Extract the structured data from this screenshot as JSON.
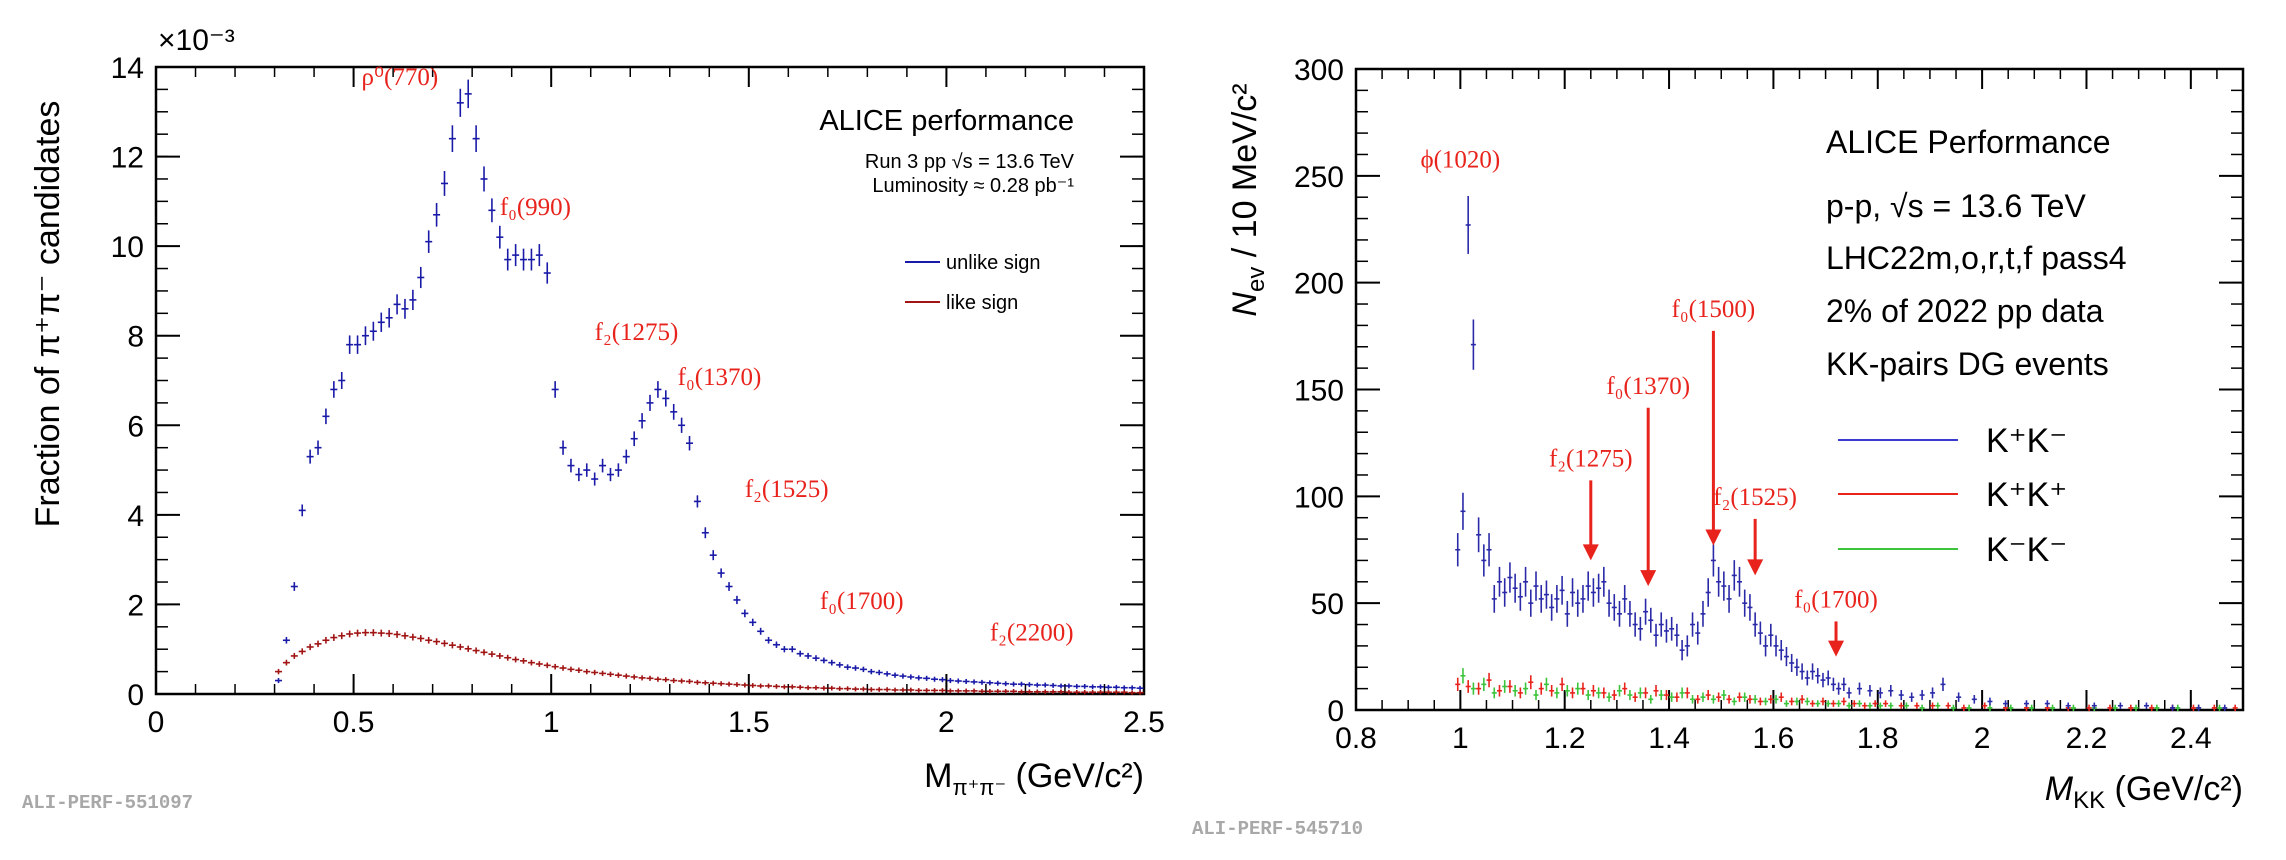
{
  "chart_data": [
    {
      "type": "scatter",
      "title": "",
      "xlabel": "M",
      "xlabel_sub": "π⁺π⁻",
      "xlabel_unit": " (GeV/c²)",
      "ylabel": "Fraction of π⁺π⁻ candidates",
      "exponent_label": "×10⁻³",
      "xlim": [
        0,
        2.5
      ],
      "ylim": [
        0,
        14
      ],
      "x_ticks": [
        "0",
        "0.5",
        "1",
        "1.5",
        "2",
        "2.5"
      ],
      "y_ticks": [
        "0",
        "2",
        "4",
        "6",
        "8",
        "10",
        "12",
        "14"
      ],
      "performance_label": "ALICE performance",
      "info_line1": "Run 3 pp √s = 13.6 TeV",
      "info_line2": "Luminosity ≈ 0.28 pb⁻¹",
      "legend": [
        {
          "label": "unlike sign",
          "color": "#1a1aa8"
        },
        {
          "label": "like sign",
          "color": "#a01414"
        }
      ],
      "annotations": [
        {
          "text": "ρ⁰(770)",
          "x": 0.52,
          "y": 13.6
        },
        {
          "text": "f₀(990)",
          "x": 0.87,
          "y": 10.7
        },
        {
          "text": "f₂(1275)",
          "x": 1.11,
          "y": 7.9
        },
        {
          "text": "f₀(1370)",
          "x": 1.32,
          "y": 6.9
        },
        {
          "text": "f₂(1525)",
          "x": 1.49,
          "y": 4.4
        },
        {
          "text": "f₀(1700)",
          "x": 1.68,
          "y": 1.9
        },
        {
          "text": "f₂(2200)",
          "x": 2.11,
          "y": 1.2
        }
      ],
      "series": [
        {
          "name": "unlike sign",
          "color": "#1a1aa8",
          "x": [
            0.31,
            0.33,
            0.35,
            0.37,
            0.39,
            0.41,
            0.43,
            0.45,
            0.47,
            0.49,
            0.51,
            0.53,
            0.55,
            0.57,
            0.59,
            0.61,
            0.63,
            0.65,
            0.67,
            0.69,
            0.71,
            0.73,
            0.75,
            0.77,
            0.79,
            0.81,
            0.83,
            0.85,
            0.87,
            0.89,
            0.91,
            0.93,
            0.95,
            0.97,
            0.99,
            1.01,
            1.03,
            1.05,
            1.07,
            1.09,
            1.11,
            1.13,
            1.15,
            1.17,
            1.19,
            1.21,
            1.23,
            1.25,
            1.27,
            1.29,
            1.31,
            1.33,
            1.35,
            1.37,
            1.39,
            1.41,
            1.43,
            1.45,
            1.47,
            1.49,
            1.51,
            1.53,
            1.55,
            1.57,
            1.59,
            1.61,
            1.63,
            1.65,
            1.67,
            1.69,
            1.71,
            1.73,
            1.75,
            1.77,
            1.79,
            1.81,
            1.83,
            1.85,
            1.87,
            1.89,
            1.91,
            1.93,
            1.95,
            1.97,
            1.99,
            2.01,
            2.03,
            2.05,
            2.07,
            2.09,
            2.11,
            2.13,
            2.15,
            2.17,
            2.19,
            2.21,
            2.23,
            2.25,
            2.27,
            2.29,
            2.31,
            2.33,
            2.35,
            2.37,
            2.39,
            2.41,
            2.43,
            2.45,
            2.47,
            2.49
          ],
          "y": [
            0.3,
            1.2,
            2.4,
            4.1,
            5.3,
            5.5,
            6.2,
            6.8,
            7.0,
            7.8,
            7.8,
            8.0,
            8.1,
            8.3,
            8.4,
            8.7,
            8.6,
            8.8,
            9.3,
            10.1,
            10.7,
            11.4,
            12.4,
            13.2,
            13.4,
            12.4,
            11.5,
            10.8,
            10.2,
            9.7,
            9.8,
            9.7,
            9.7,
            9.8,
            9.4,
            6.8,
            5.5,
            5.1,
            4.9,
            5.0,
            4.8,
            5.1,
            4.9,
            5.0,
            5.3,
            5.7,
            6.1,
            6.5,
            6.8,
            6.6,
            6.3,
            6.0,
            5.6,
            4.3,
            3.6,
            3.1,
            2.7,
            2.4,
            2.1,
            1.8,
            1.6,
            1.4,
            1.2,
            1.1,
            1.0,
            1.0,
            0.9,
            0.85,
            0.8,
            0.75,
            0.7,
            0.65,
            0.6,
            0.58,
            0.55,
            0.5,
            0.48,
            0.45,
            0.42,
            0.4,
            0.38,
            0.36,
            0.35,
            0.33,
            0.32,
            0.3,
            0.29,
            0.28,
            0.27,
            0.26,
            0.25,
            0.24,
            0.23,
            0.22,
            0.22,
            0.21,
            0.2,
            0.2,
            0.19,
            0.18,
            0.18,
            0.17,
            0.17,
            0.16,
            0.16,
            0.15,
            0.15,
            0.14,
            0.14,
            0.13
          ]
        },
        {
          "name": "like sign",
          "color": "#a01414",
          "x": [
            0.31,
            0.33,
            0.35,
            0.37,
            0.39,
            0.41,
            0.43,
            0.45,
            0.47,
            0.49,
            0.51,
            0.53,
            0.55,
            0.57,
            0.59,
            0.61,
            0.63,
            0.65,
            0.67,
            0.69,
            0.71,
            0.73,
            0.75,
            0.77,
            0.79,
            0.81,
            0.83,
            0.85,
            0.87,
            0.89,
            0.91,
            0.93,
            0.95,
            0.97,
            0.99,
            1.01,
            1.03,
            1.05,
            1.07,
            1.09,
            1.11,
            1.13,
            1.15,
            1.17,
            1.19,
            1.21,
            1.23,
            1.25,
            1.27,
            1.29,
            1.31,
            1.33,
            1.35,
            1.37,
            1.39,
            1.41,
            1.43,
            1.45,
            1.47,
            1.49,
            1.51,
            1.53,
            1.55,
            1.57,
            1.59,
            1.61,
            1.63,
            1.65,
            1.67,
            1.69,
            1.71,
            1.73,
            1.75,
            1.77,
            1.79,
            1.81,
            1.83,
            1.85,
            1.87,
            1.89,
            1.91,
            1.93,
            1.95,
            1.97,
            1.99,
            2.01,
            2.03,
            2.05,
            2.07,
            2.09,
            2.11,
            2.13,
            2.15,
            2.17,
            2.19,
            2.21,
            2.23,
            2.25,
            2.27,
            2.29,
            2.31,
            2.33,
            2.35,
            2.37,
            2.39,
            2.41,
            2.43,
            2.45,
            2.47,
            2.49
          ],
          "y": [
            0.5,
            0.7,
            0.85,
            0.95,
            1.05,
            1.12,
            1.2,
            1.26,
            1.3,
            1.34,
            1.36,
            1.37,
            1.37,
            1.36,
            1.35,
            1.33,
            1.3,
            1.27,
            1.24,
            1.2,
            1.17,
            1.13,
            1.09,
            1.05,
            1.01,
            0.97,
            0.93,
            0.89,
            0.85,
            0.81,
            0.77,
            0.74,
            0.7,
            0.67,
            0.64,
            0.61,
            0.58,
            0.55,
            0.53,
            0.5,
            0.48,
            0.46,
            0.44,
            0.42,
            0.4,
            0.38,
            0.36,
            0.35,
            0.33,
            0.32,
            0.3,
            0.29,
            0.28,
            0.26,
            0.25,
            0.24,
            0.23,
            0.22,
            0.21,
            0.2,
            0.19,
            0.18,
            0.18,
            0.17,
            0.16,
            0.16,
            0.15,
            0.14,
            0.14,
            0.13,
            0.13,
            0.12,
            0.12,
            0.11,
            0.11,
            0.1,
            0.1,
            0.1,
            0.09,
            0.09,
            0.09,
            0.08,
            0.08,
            0.08,
            0.08,
            0.07,
            0.07,
            0.07,
            0.07,
            0.06,
            0.06,
            0.06,
            0.06,
            0.06,
            0.05,
            0.05,
            0.05,
            0.05,
            0.05,
            0.05,
            0.04,
            0.04,
            0.04,
            0.04,
            0.04,
            0.04,
            0.04,
            0.04,
            0.03,
            0.03
          ]
        }
      ]
    },
    {
      "type": "scatter",
      "title": "",
      "xlabel": "M",
      "xlabel_sub": "KK",
      "xlabel_unit": " (GeV/c²)",
      "ylabel": "N",
      "ylabel_sub": "ev",
      "ylabel_rest": " / 10 MeV/c²",
      "xlim": [
        0.8,
        2.5
      ],
      "ylim": [
        0,
        300
      ],
      "x_ticks": [
        "0.8",
        "1",
        "1.2",
        "1.4",
        "1.6",
        "1.8",
        "2",
        "2.2",
        "2.4"
      ],
      "y_ticks": [
        "0",
        "50",
        "100",
        "150",
        "200",
        "250",
        "300"
      ],
      "info_lines": [
        "ALICE Performance",
        "p-p, √s = 13.6 TeV",
        "LHC22m,o,r,t,f  pass4",
        "2% of 2022 pp data",
        "KK-pairs DG events"
      ],
      "legend": [
        {
          "label": "K⁺K⁻",
          "color": "#3b3bd0"
        },
        {
          "label": "K⁺K⁺",
          "color": "#e8231c"
        },
        {
          "label": "K⁻K⁻",
          "color": "#3cc43c"
        }
      ],
      "annotations": [
        {
          "text": "ϕ(1020)",
          "x": 1.0,
          "y": 254,
          "arrow_to": null
        },
        {
          "text": "f₀(1370)",
          "x": 1.36,
          "y": 148,
          "arrow_to": 58
        },
        {
          "text": "f₀(1500)",
          "x": 1.485,
          "y": 184,
          "arrow_to": 77
        },
        {
          "text": "f₂(1275)",
          "x": 1.25,
          "y": 114,
          "arrow_to": 70
        },
        {
          "text": "f₂(1525)",
          "x": 1.565,
          "y": 96,
          "arrow_to": 63
        },
        {
          "text": "f₀(1700)",
          "x": 1.72,
          "y": 48,
          "arrow_to": 25
        }
      ],
      "series": [
        {
          "name": "K⁺K⁻",
          "color": "#2a2aa8",
          "x": [
            0.995,
            1.005,
            1.015,
            1.025,
            1.035,
            1.045,
            1.055,
            1.065,
            1.075,
            1.085,
            1.095,
            1.105,
            1.115,
            1.125,
            1.135,
            1.145,
            1.155,
            1.165,
            1.175,
            1.185,
            1.195,
            1.205,
            1.215,
            1.225,
            1.235,
            1.245,
            1.255,
            1.265,
            1.275,
            1.285,
            1.295,
            1.305,
            1.315,
            1.325,
            1.335,
            1.345,
            1.355,
            1.365,
            1.375,
            1.385,
            1.395,
            1.405,
            1.415,
            1.425,
            1.435,
            1.445,
            1.455,
            1.465,
            1.475,
            1.485,
            1.495,
            1.505,
            1.515,
            1.525,
            1.535,
            1.545,
            1.555,
            1.565,
            1.575,
            1.585,
            1.595,
            1.605,
            1.615,
            1.625,
            1.635,
            1.645,
            1.655,
            1.665,
            1.675,
            1.685,
            1.695,
            1.705,
            1.715,
            1.725,
            1.735,
            1.745,
            1.765,
            1.785,
            1.805,
            1.825,
            1.845,
            1.865,
            1.885,
            1.905,
            1.925,
            1.955,
            1.985,
            2.015,
            2.045,
            2.085,
            2.125,
            2.165,
            2.215,
            2.265,
            2.315,
            2.365,
            2.415,
            2.465
          ],
          "y": [
            75,
            93,
            227,
            171,
            82,
            70,
            75,
            52,
            60,
            55,
            62,
            57,
            53,
            60,
            50,
            58,
            52,
            54,
            48,
            52,
            56,
            45,
            55,
            50,
            52,
            58,
            55,
            57,
            60,
            50,
            48,
            45,
            52,
            45,
            40,
            38,
            46,
            42,
            35,
            40,
            37,
            38,
            35,
            28,
            30,
            40,
            36,
            45,
            55,
            70,
            60,
            58,
            52,
            63,
            60,
            50,
            48,
            40,
            36,
            30,
            35,
            30,
            28,
            25,
            22,
            20,
            18,
            15,
            18,
            16,
            14,
            15,
            12,
            10,
            12,
            8,
            10,
            9,
            8,
            9,
            7,
            6,
            7,
            8,
            12,
            6,
            5,
            4,
            3,
            3,
            3,
            2,
            2,
            2,
            2,
            1,
            1,
            1
          ]
        },
        {
          "name": "K⁺K⁺",
          "color": "#e8231c",
          "x": [
            0.995,
            1.015,
            1.035,
            1.055,
            1.075,
            1.095,
            1.115,
            1.135,
            1.155,
            1.175,
            1.195,
            1.215,
            1.235,
            1.255,
            1.275,
            1.295,
            1.315,
            1.335,
            1.355,
            1.375,
            1.395,
            1.415,
            1.435,
            1.455,
            1.475,
            1.495,
            1.515,
            1.535,
            1.555,
            1.575,
            1.595,
            1.615,
            1.635,
            1.655,
            1.675,
            1.695,
            1.715,
            1.735,
            1.755,
            1.775,
            1.795,
            1.815,
            1.845,
            1.875,
            1.905,
            1.935,
            1.965,
            2.005,
            2.045,
            2.085,
            2.125,
            2.165,
            2.205,
            2.245,
            2.285,
            2.325,
            2.365,
            2.405,
            2.445,
            2.485
          ],
          "y": [
            12,
            11,
            10,
            14,
            9,
            11,
            8,
            13,
            10,
            9,
            12,
            8,
            10,
            9,
            8,
            7,
            10,
            6,
            8,
            9,
            7,
            6,
            8,
            5,
            7,
            6,
            5,
            6,
            5,
            4,
            5,
            6,
            4,
            5,
            3,
            4,
            3,
            4,
            3,
            2,
            3,
            3,
            2,
            2,
            2,
            2,
            1,
            2,
            1,
            1,
            1,
            1,
            1,
            1,
            1,
            1,
            1,
            1,
            1,
            1
          ]
        },
        {
          "name": "K⁻K⁻",
          "color": "#3cc43c",
          "x": [
            1.005,
            1.025,
            1.045,
            1.065,
            1.085,
            1.105,
            1.125,
            1.145,
            1.165,
            1.185,
            1.205,
            1.225,
            1.245,
            1.265,
            1.285,
            1.305,
            1.325,
            1.345,
            1.365,
            1.385,
            1.405,
            1.425,
            1.445,
            1.465,
            1.485,
            1.505,
            1.525,
            1.545,
            1.565,
            1.585,
            1.605,
            1.625,
            1.645,
            1.665,
            1.685,
            1.705,
            1.725,
            1.745,
            1.765,
            1.785,
            1.805,
            1.825,
            1.855,
            1.885,
            1.915,
            1.945,
            1.975,
            2.015,
            2.055,
            2.095,
            2.135,
            2.175,
            2.215,
            2.255,
            2.295,
            2.335,
            2.375,
            2.415,
            2.455
          ],
          "y": [
            16,
            10,
            12,
            8,
            11,
            9,
            10,
            7,
            12,
            8,
            9,
            10,
            7,
            8,
            6,
            9,
            7,
            8,
            5,
            7,
            6,
            8,
            5,
            6,
            5,
            7,
            4,
            6,
            5,
            4,
            5,
            3,
            4,
            4,
            3,
            3,
            3,
            2,
            3,
            2,
            2,
            2,
            2,
            1,
            2,
            1,
            1,
            1,
            1,
            1,
            1,
            1,
            1,
            1,
            1,
            1,
            1,
            1,
            1
          ]
        }
      ]
    }
  ],
  "figure_tags": [
    "ALI-PERF-551097",
    "ALI-PERF-545710"
  ]
}
